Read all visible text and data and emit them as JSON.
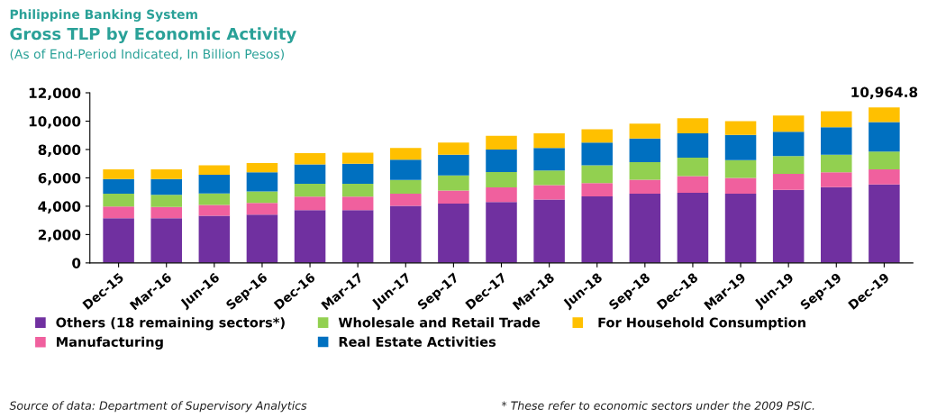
{
  "chart_data": {
    "type": "bar",
    "stacked": true,
    "title": "Gross TLP by Economic Activity",
    "subtitle": "(As of End-Period Indicated, In Billion Pesos)",
    "categories": [
      "Dec-15",
      "Mar-16",
      "Jun-16",
      "Sep-16",
      "Dec-16",
      "Mar-17",
      "Jun-17",
      "Sep-17",
      "Dec-17",
      "Mar-18",
      "Jun-18",
      "Sep-18",
      "Dec-18",
      "Mar-19",
      "Jun-19",
      "Sep-19",
      "Dec-19"
    ],
    "series": [
      {
        "name": "Others (18 remaining sectors*)",
        "color": "#7030a0",
        "values": [
          3160,
          3160,
          3330,
          3400,
          3720,
          3720,
          4020,
          4190,
          4300,
          4470,
          4690,
          4880,
          4950,
          4880,
          5160,
          5350,
          5530
        ]
      },
      {
        "name": "Manufacturing",
        "color": "#f0609e",
        "values": [
          820,
          780,
          760,
          840,
          950,
          950,
          860,
          910,
          1030,
          1010,
          940,
          990,
          1180,
          1120,
          1120,
          1040,
          1070
        ]
      },
      {
        "name": "Wholesale and Retail Trade",
        "color": "#92d050",
        "values": [
          900,
          860,
          810,
          810,
          920,
          920,
          970,
          1070,
          1080,
          1040,
          1250,
          1230,
          1290,
          1250,
          1250,
          1240,
          1250
        ]
      },
      {
        "name": "Real Estate Activities",
        "color": "#0070c0",
        "values": [
          1030,
          1110,
          1320,
          1340,
          1360,
          1400,
          1440,
          1460,
          1590,
          1590,
          1610,
          1670,
          1720,
          1780,
          1720,
          1940,
          2090
        ]
      },
      {
        "name": " For Household Consumption",
        "color": "#ffc000",
        "values": [
          690,
          690,
          660,
          660,
          790,
          790,
          820,
          860,
          970,
          1030,
          930,
          1060,
          1060,
          970,
          1140,
          1120,
          1020
        ]
      }
    ],
    "ylim": [
      0,
      12000
    ],
    "yticks": [
      0,
      {
        "value": 2000,
        "label": "2,000"
      },
      {
        "value": 4000,
        "label": "4,000"
      },
      {
        "value": 6000,
        "label": "6,000"
      },
      {
        "value": 8000,
        "label": "8,000"
      },
      {
        "value": 10000,
        "label": "10,000"
      },
      {
        "value": 12000,
        "label": "12,000"
      }
    ],
    "grid": false,
    "legend": "bottom",
    "annotations": [
      "Philippine Banking System",
      {
        "text": "10,964.8",
        "x": "Dec-19",
        "y": 10964.8
      },
      "Source of data: Department of Supervisory Analytics",
      "* These refer to economic sectors under the 2009 PSIC."
    ]
  }
}
